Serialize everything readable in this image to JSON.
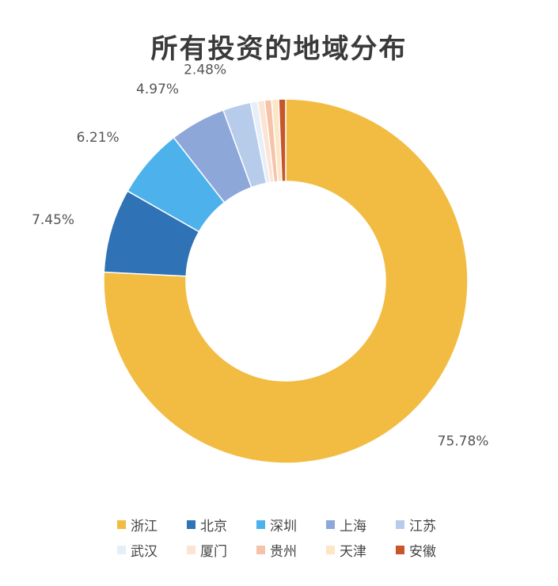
{
  "chart_data": {
    "type": "pie",
    "variant": "donut",
    "title": "所有投资的地域分布",
    "categories": [
      "浙江",
      "北京",
      "深圳",
      "上海",
      "江苏",
      "武汉",
      "厦门",
      "贵州",
      "天津",
      "安徽"
    ],
    "values": [
      75.78,
      7.45,
      6.21,
      4.97,
      2.48,
      0.62,
      0.62,
      0.62,
      0.62,
      0.62
    ],
    "data_labels": [
      "75.78%",
      "7.45%",
      "6.21%",
      "4.97%",
      "2.48%",
      "",
      "",
      "",
      "",
      ""
    ],
    "colors": [
      "#F2BC42",
      "#2F72B5",
      "#4DB2EC",
      "#8DA7D8",
      "#B7CCEB",
      "#E6EEF8",
      "#FCE3D2",
      "#F4C3A9",
      "#FCE6C6",
      "#C8562A"
    ],
    "legend_position": "bottom"
  }
}
